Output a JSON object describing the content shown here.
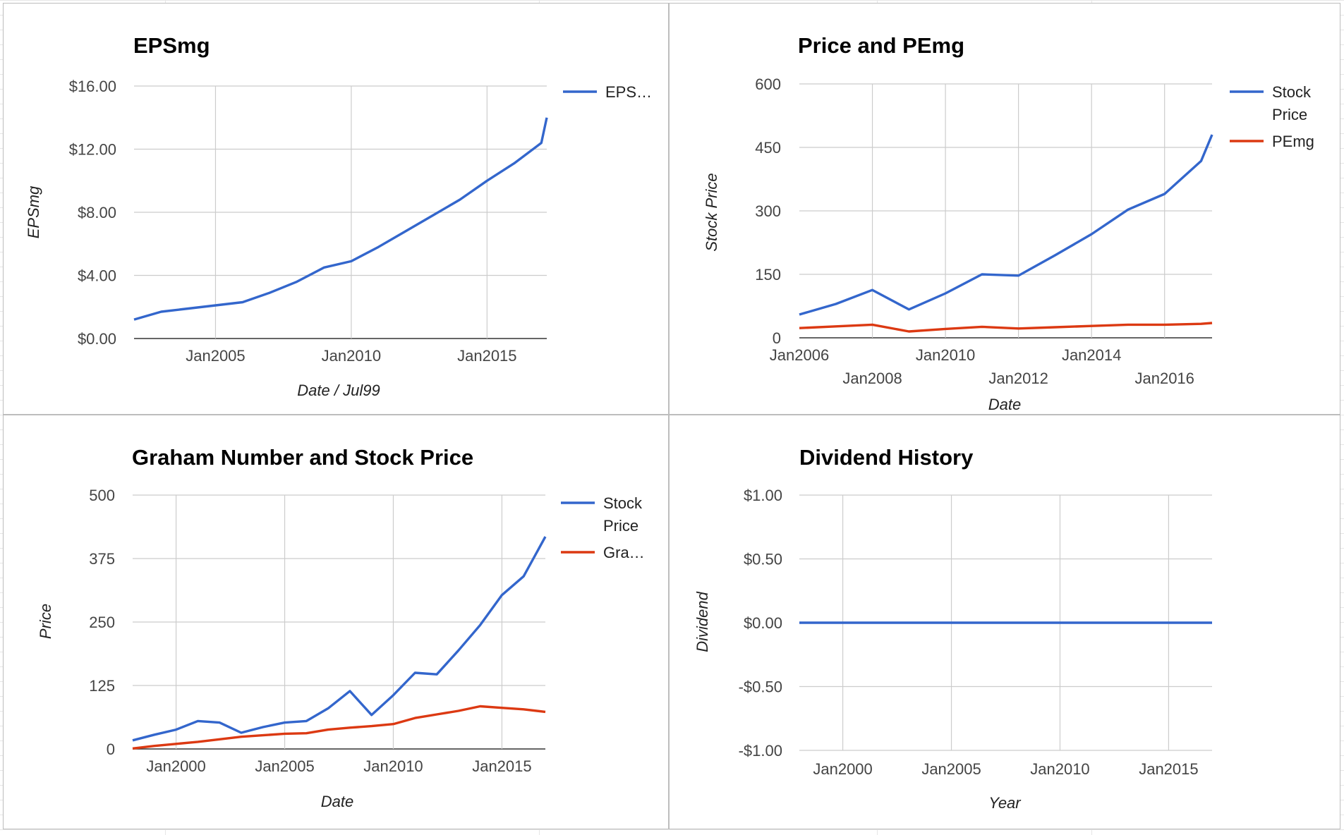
{
  "chart_data": [
    {
      "type": "line",
      "title": "EPSmg",
      "xlabel": "Date / Jul99",
      "ylabel": "EPSmg",
      "x_ticks": [
        "Jan2005",
        "Jan2010",
        "Jan2015"
      ],
      "y_ticks": [
        "$16.00",
        "$12.00",
        "$8.00",
        "$4.00",
        "$0.00"
      ],
      "ylim": [
        0,
        16
      ],
      "xlim": [
        2002.0,
        2017.2
      ],
      "grid": true,
      "legend": "right",
      "series": [
        {
          "name": "EPS…",
          "color": "#3366cc",
          "x": [
            2002.0,
            2003.0,
            2004.0,
            2005.0,
            2006.0,
            2007.0,
            2008.0,
            2009.0,
            2010.0,
            2011.0,
            2012.0,
            2013.0,
            2014.0,
            2015.0,
            2016.0,
            2017.0,
            2017.2
          ],
          "values": [
            1.2,
            1.7,
            1.9,
            2.1,
            2.3,
            2.9,
            3.6,
            4.5,
            4.9,
            5.8,
            6.8,
            7.8,
            8.8,
            10.0,
            11.1,
            12.4,
            14.0
          ]
        }
      ]
    },
    {
      "type": "line",
      "title": "Price and PEmg",
      "xlabel": "Date",
      "ylabel": "Stock Price",
      "x_ticks_row1": [
        "Jan2006",
        "Jan2010",
        "Jan2014"
      ],
      "x_ticks_row2": [
        "Jan2008",
        "Jan2012",
        "Jan2016"
      ],
      "y_ticks": [
        "600",
        "450",
        "300",
        "150",
        "0"
      ],
      "ylim": [
        0,
        600
      ],
      "xlim": [
        2006.0,
        2017.3
      ],
      "grid": true,
      "legend": "right",
      "series": [
        {
          "name": "Stock Price",
          "color": "#3366cc",
          "x": [
            2006.0,
            2007.0,
            2008.0,
            2009.0,
            2010.0,
            2011.0,
            2012.0,
            2013.0,
            2014.0,
            2015.0,
            2016.0,
            2017.0,
            2017.3
          ],
          "values": [
            55,
            80,
            113,
            67,
            105,
            150,
            147,
            195,
            245,
            303,
            340,
            418,
            480
          ]
        },
        {
          "name": "PEmg",
          "color": "#dc3912",
          "x": [
            2006.0,
            2007.0,
            2008.0,
            2009.0,
            2010.0,
            2011.0,
            2012.0,
            2013.0,
            2014.0,
            2015.0,
            2016.0,
            2017.0,
            2017.3
          ],
          "values": [
            23,
            27,
            31,
            15,
            21,
            26,
            22,
            25,
            28,
            31,
            31,
            33,
            35
          ]
        }
      ]
    },
    {
      "type": "line",
      "title": "Graham Number and Stock Price",
      "xlabel": "Date",
      "ylabel": "Price",
      "x_ticks": [
        "Jan2000",
        "Jan2005",
        "Jan2010",
        "Jan2015"
      ],
      "y_ticks": [
        "500",
        "375",
        "250",
        "125",
        "0"
      ],
      "ylim": [
        0,
        500
      ],
      "xlim": [
        1998.0,
        2017.0
      ],
      "grid": true,
      "legend": "right",
      "series": [
        {
          "name": "Stock Price",
          "color": "#3366cc",
          "x": [
            1998.0,
            1999.0,
            2000.0,
            2001.0,
            2002.0,
            2003.0,
            2004.0,
            2005.0,
            2006.0,
            2007.0,
            2008.0,
            2009.0,
            2010.0,
            2011.0,
            2012.0,
            2013.0,
            2014.0,
            2015.0,
            2016.0,
            2017.0
          ],
          "values": [
            17,
            28,
            38,
            55,
            52,
            32,
            43,
            52,
            55,
            80,
            114,
            67,
            106,
            150,
            147,
            194,
            244,
            303,
            340,
            418
          ]
        },
        {
          "name": "Gra…",
          "color": "#dc3912",
          "x": [
            1998.0,
            1999.0,
            2000.0,
            2001.0,
            2002.0,
            2003.0,
            2004.0,
            2005.0,
            2006.0,
            2007.0,
            2008.0,
            2009.0,
            2010.0,
            2011.0,
            2012.0,
            2013.0,
            2014.0,
            2015.0,
            2016.0,
            2017.0
          ],
          "values": [
            1,
            6,
            10,
            14,
            19,
            24,
            27,
            30,
            31,
            38,
            42,
            45,
            49,
            61,
            68,
            75,
            84,
            81,
            78,
            73
          ]
        }
      ]
    },
    {
      "type": "line",
      "title": "Dividend History",
      "xlabel": "Year",
      "ylabel": "Dividend",
      "x_ticks": [
        "Jan2000",
        "Jan2005",
        "Jan2010",
        "Jan2015"
      ],
      "y_ticks": [
        "$1.00",
        "$0.50",
        "$0.00",
        "-$0.50",
        "-$1.00"
      ],
      "ylim": [
        -1,
        1
      ],
      "xlim": [
        1998.0,
        2017.0
      ],
      "grid": true,
      "legend": "none",
      "series": [
        {
          "color": "#3366cc",
          "x": [
            1998.0,
            2017.0
          ],
          "values": [
            0,
            0
          ]
        }
      ]
    }
  ]
}
